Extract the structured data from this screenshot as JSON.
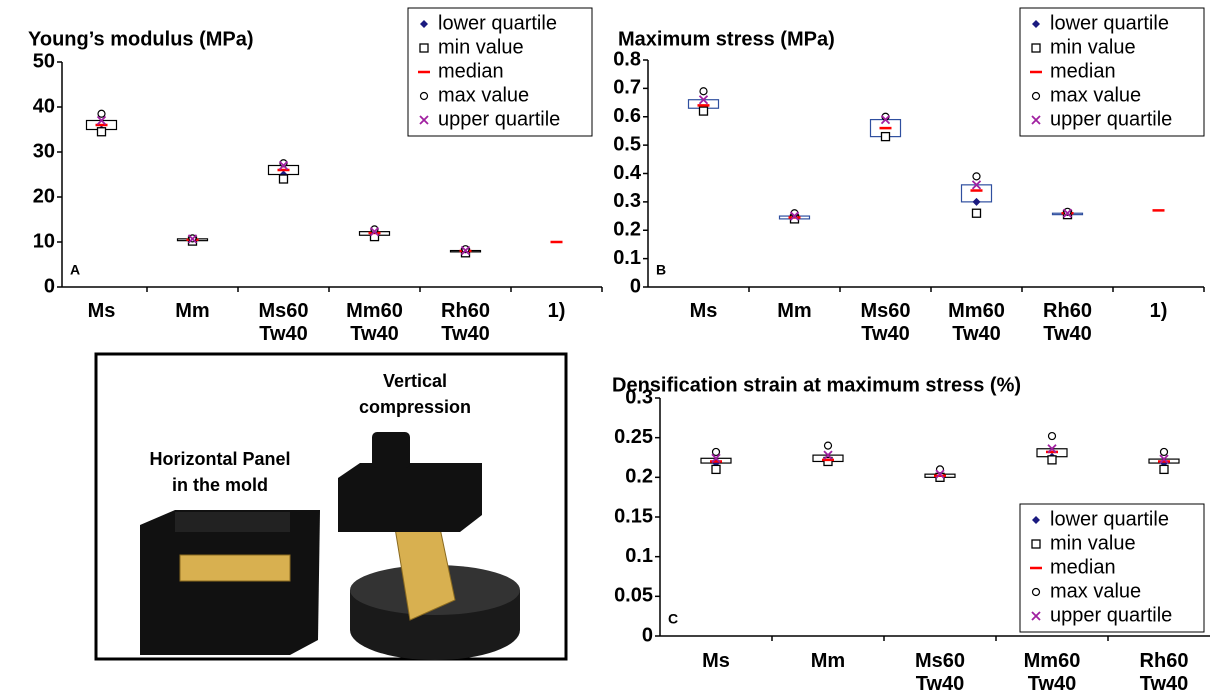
{
  "chart_data": [
    {
      "type": "box",
      "title": "Young’s modulus (MPa)",
      "panel_label": "A",
      "box_color": "#000000",
      "legend": "upper right",
      "categories": [
        "Ms",
        "Mm",
        "Ms60\nTw40",
        "Mm60\nTw40",
        "Rh60\nTw40",
        "1)"
      ],
      "ylim": [
        0,
        50
      ],
      "yticks": [
        0,
        10,
        20,
        30,
        40,
        50
      ],
      "series": [
        {
          "name": "lower quartile",
          "marker": "diamond",
          "color": "#1a1a80",
          "values": [
            35,
            10.3,
            25,
            11.5,
            7.8,
            null
          ]
        },
        {
          "name": "min value",
          "marker": "square",
          "color": "#000000",
          "values": [
            34.5,
            10.2,
            24,
            11.2,
            7.6,
            null
          ]
        },
        {
          "name": "median",
          "marker": "dash",
          "color": "#ff0000",
          "values": [
            36,
            10.5,
            26,
            12,
            8,
            10
          ]
        },
        {
          "name": "max value",
          "marker": "circle",
          "color": "#000000",
          "values": [
            38.5,
            10.8,
            27.5,
            12.8,
            8.4,
            null
          ]
        },
        {
          "name": "upper quartile",
          "marker": "cross",
          "color": "#a020a0",
          "values": [
            37,
            10.7,
            27,
            12.3,
            8.1,
            null
          ]
        }
      ]
    },
    {
      "type": "box",
      "title": "Maximum stress (MPa)",
      "panel_label": "B",
      "box_color": "#2f4f9f",
      "legend": "upper right",
      "categories": [
        "Ms",
        "Mm",
        "Ms60\nTw40",
        "Mm60\nTw40",
        "Rh60\nTw40",
        "1)"
      ],
      "ylim": [
        0,
        0.8
      ],
      "yticks": [
        0,
        0.1,
        0.2,
        0.3,
        0.4,
        0.5,
        0.6,
        0.7,
        0.8
      ],
      "series": [
        {
          "name": "lower quartile",
          "marker": "diamond",
          "color": "#1a1a80",
          "values": [
            0.63,
            0.24,
            0.53,
            0.3,
            0.255,
            null
          ]
        },
        {
          "name": "min value",
          "marker": "square",
          "color": "#000000",
          "values": [
            0.62,
            0.24,
            0.53,
            0.26,
            0.255,
            null
          ]
        },
        {
          "name": "median",
          "marker": "dash",
          "color": "#ff0000",
          "values": [
            0.64,
            0.245,
            0.56,
            0.34,
            0.26,
            0.27
          ]
        },
        {
          "name": "max value",
          "marker": "circle",
          "color": "#000000",
          "values": [
            0.69,
            0.26,
            0.6,
            0.39,
            0.265,
            null
          ]
        },
        {
          "name": "upper quartile",
          "marker": "cross",
          "color": "#a020a0",
          "values": [
            0.66,
            0.25,
            0.59,
            0.36,
            0.26,
            null
          ]
        }
      ]
    },
    {
      "type": "box",
      "title": "Densification strain at maximum stress (%)",
      "panel_label": "C",
      "box_color": "#000000",
      "legend": "lower right",
      "categories": [
        "Ms",
        "Mm",
        "Ms60\nTw40",
        "Mm60\nTw40",
        "Rh60\nTw40"
      ],
      "ylim": [
        0,
        0.3
      ],
      "yticks": [
        0,
        0.05,
        0.1,
        0.15,
        0.2,
        0.25,
        0.3
      ],
      "series": [
        {
          "name": "lower quartile",
          "marker": "diamond",
          "color": "#1a1a80",
          "values": [
            0.218,
            0.22,
            0.2,
            0.226,
            0.218
          ]
        },
        {
          "name": "min value",
          "marker": "square",
          "color": "#000000",
          "values": [
            0.21,
            0.22,
            0.2,
            0.222,
            0.21
          ]
        },
        {
          "name": "median",
          "marker": "dash",
          "color": "#ff0000",
          "values": [
            0.22,
            0.222,
            0.202,
            0.232,
            0.22
          ]
        },
        {
          "name": "max value",
          "marker": "circle",
          "color": "#000000",
          "values": [
            0.232,
            0.24,
            0.21,
            0.252,
            0.232
          ]
        },
        {
          "name": "upper quartile",
          "marker": "cross",
          "color": "#a020a0",
          "values": [
            0.224,
            0.228,
            0.204,
            0.236,
            0.223
          ]
        }
      ]
    }
  ],
  "illustration": {
    "vertical_label": "Vertical\ncompression",
    "horizontal_label": "Horizontal Panel\nin the mold"
  }
}
